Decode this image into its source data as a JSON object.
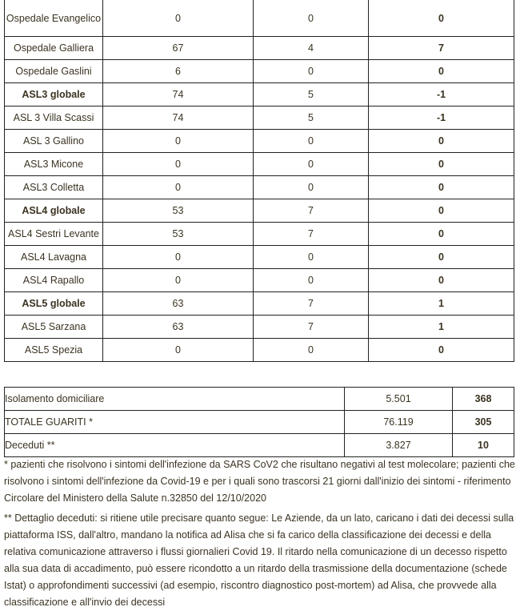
{
  "hospitals": [
    {
      "name": "Ospedale Evangelico",
      "a": "0",
      "b": "0",
      "c": "0",
      "bold": false
    },
    {
      "name": "Ospedale Galliera",
      "a": "67",
      "b": "4",
      "c": "7",
      "bold": false
    },
    {
      "name": "Ospedale Gaslini",
      "a": "6",
      "b": "0",
      "c": "0",
      "bold": false
    },
    {
      "name": "ASL3 globale",
      "a": "74",
      "b": "5",
      "c": "-1",
      "bold": true
    },
    {
      "name": "ASL 3 Villa Scassi",
      "a": "74",
      "b": "5",
      "c": "-1",
      "bold": false
    },
    {
      "name": "ASL 3 Gallino",
      "a": "0",
      "b": "0",
      "c": "0",
      "bold": false
    },
    {
      "name": "ASL3 Micone",
      "a": "0",
      "b": "0",
      "c": "0",
      "bold": false
    },
    {
      "name": "ASL3 Colletta",
      "a": "0",
      "b": "0",
      "c": "0",
      "bold": false
    },
    {
      "name": "ASL4 globale",
      "a": "53",
      "b": "7",
      "c": "0",
      "bold": true
    },
    {
      "name": "ASL4 Sestri Levante",
      "a": "53",
      "b": "7",
      "c": "0",
      "bold": false
    },
    {
      "name": "ASL4 Lavagna",
      "a": "0",
      "b": "0",
      "c": "0",
      "bold": false
    },
    {
      "name": "ASL4 Rapallo",
      "a": "0",
      "b": "0",
      "c": "0",
      "bold": false
    },
    {
      "name": "ASL5 globale",
      "a": "63",
      "b": "7",
      "c": "1",
      "bold": true
    },
    {
      "name": "ASL5 Sarzana",
      "a": "63",
      "b": "7",
      "c": "1",
      "bold": false
    },
    {
      "name": "ASL5 Spezia",
      "a": "0",
      "b": "0",
      "c": "0",
      "bold": false
    }
  ],
  "summary": [
    {
      "label": "Isolamento domiciliare",
      "total": "5.501",
      "delta": "368"
    },
    {
      "label": "TOTALE GUARITI *",
      "total": "76.119",
      "delta": "305"
    },
    {
      "label": "Deceduti **",
      "total": "3.827",
      "delta": "10"
    }
  ],
  "notes": {
    "guariti": "* pazienti che risolvono i sintomi dell'infezione da SARS CoV2 che risultano negativi al test molecolare; pazienti che risolvono i sintomi dell'infezione da Covid-19 e per i quali sono trascorsi 21 giorni dall'inizio dei sintomi - riferimento Circolare del Ministero della Salute n.32850 del 12/10/2020",
    "deceduti": "** Dettaglio deceduti: si ritiene utile precisare quanto segue: Le Aziende, da un lato, caricano i dati dei decessi sulla piattaforma ISS, dall'altro, mandano la notifica ad Alisa che si fa carico della classificazione dei decessi e della relativa comunicazione attraverso i flussi giornalieri Covid 19. Il ritardo nella comunicazione di un decesso rispetto alla sua data di accadimento, può essere ricondotto a un ritardo della trasmissione della documentazione (schede Istat) o approfondimenti successivi (ad esempio, riscontro diagnostico post-mortem) ad Alisa, che provvede alla classificazione e all'invio dei decessi"
  }
}
